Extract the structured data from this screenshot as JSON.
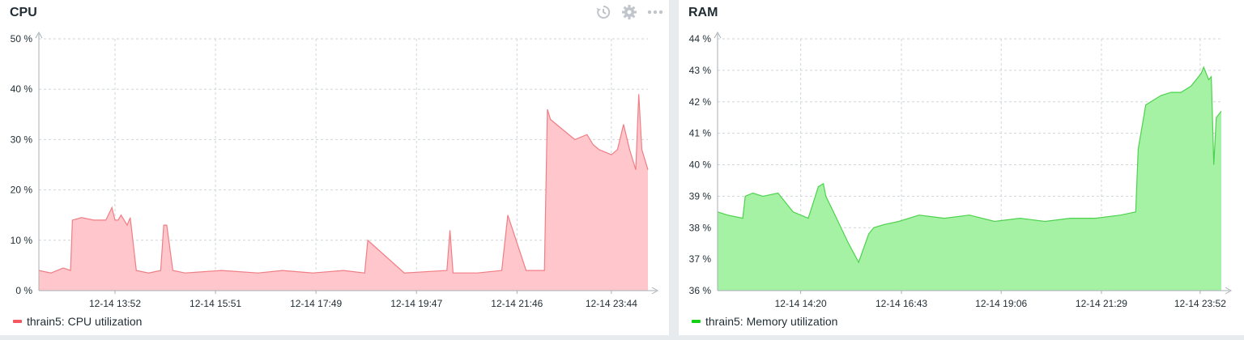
{
  "panels": [
    {
      "title": "CPU",
      "icons": [
        "history-icon",
        "gear-icon",
        "more-icon"
      ],
      "legend": "thrain5: CPU utilization",
      "colors": {
        "line": "#f07e85",
        "fill": "#ffc7cb",
        "swatch": "#f4575f"
      }
    },
    {
      "title": "RAM",
      "icons": [],
      "legend": "thrain5: Memory utilization",
      "colors": {
        "line": "#4dd24d",
        "fill": "#a5f2a5",
        "swatch": "#14d114"
      }
    }
  ],
  "chart_data": [
    {
      "type": "area",
      "title": "CPU",
      "ylim": [
        0,
        50
      ],
      "yticks": [
        "0 %",
        "10 %",
        "20 %",
        "30 %",
        "40 %",
        "50 %"
      ],
      "xticks": [
        "12-14 13:52",
        "12-14 15:51",
        "12-14 17:49",
        "12-14 19:47",
        "12-14 21:46",
        "12-14 23:44"
      ],
      "xtick_values": [
        0.125,
        0.29,
        0.455,
        0.62,
        0.785,
        0.94
      ],
      "grid": true,
      "legend_position": "bottom-left",
      "series": [
        {
          "name": "thrain5: CPU utilization",
          "x": [
            0,
            0.02,
            0.04,
            0.052,
            0.055,
            0.07,
            0.09,
            0.11,
            0.12,
            0.125,
            0.13,
            0.135,
            0.14,
            0.145,
            0.15,
            0.16,
            0.18,
            0.2,
            0.205,
            0.21,
            0.22,
            0.24,
            0.3,
            0.36,
            0.4,
            0.45,
            0.5,
            0.535,
            0.54,
            0.6,
            0.67,
            0.675,
            0.68,
            0.72,
            0.76,
            0.77,
            0.8,
            0.83,
            0.835,
            0.84,
            0.86,
            0.88,
            0.9,
            0.91,
            0.92,
            0.94,
            0.95,
            0.96,
            0.97,
            0.98,
            0.985,
            0.99,
            1.0
          ],
          "y": [
            4,
            3.5,
            4.5,
            4,
            14,
            14.5,
            14,
            14,
            16.5,
            14,
            14,
            15,
            14,
            13,
            14.5,
            4,
            3.5,
            4,
            13,
            13,
            4,
            3.5,
            4,
            3.5,
            4,
            3.5,
            4,
            3.5,
            10,
            3.5,
            4,
            12,
            3.5,
            3.5,
            4,
            15,
            4,
            4,
            36,
            34,
            32,
            30,
            31,
            29,
            28,
            27,
            28,
            33,
            28,
            24,
            39,
            28,
            24
          ]
        }
      ]
    },
    {
      "type": "area",
      "title": "RAM",
      "ylim": [
        36,
        44
      ],
      "yticks": [
        "36 %",
        "37 %",
        "38 %",
        "39 %",
        "40 %",
        "41 %",
        "42 %",
        "43 %",
        "44 %"
      ],
      "xticks": [
        "12-14 14:20",
        "12-14 16:43",
        "12-14 19:06",
        "12-14 21:29",
        "12-14 23:52"
      ],
      "xtick_values": [
        0.165,
        0.365,
        0.563,
        0.762,
        0.958
      ],
      "grid": true,
      "legend_position": "bottom-left",
      "series": [
        {
          "name": "thrain5: Memory utilization",
          "x": [
            0,
            0.02,
            0.05,
            0.055,
            0.07,
            0.09,
            0.12,
            0.15,
            0.18,
            0.2,
            0.21,
            0.215,
            0.23,
            0.26,
            0.28,
            0.3,
            0.31,
            0.33,
            0.36,
            0.4,
            0.45,
            0.5,
            0.55,
            0.6,
            0.65,
            0.7,
            0.75,
            0.8,
            0.83,
            0.835,
            0.85,
            0.88,
            0.9,
            0.92,
            0.94,
            0.96,
            0.965,
            0.975,
            0.98,
            0.985,
            0.99,
            1.0
          ],
          "y": [
            38.5,
            38.4,
            38.3,
            39.0,
            39.1,
            39.0,
            39.1,
            38.5,
            38.3,
            39.3,
            39.4,
            39.0,
            38.5,
            37.5,
            36.9,
            37.8,
            38.0,
            38.1,
            38.2,
            38.4,
            38.3,
            38.4,
            38.2,
            38.3,
            38.2,
            38.3,
            38.3,
            38.4,
            38.5,
            40.5,
            41.9,
            42.2,
            42.3,
            42.3,
            42.5,
            42.9,
            43.1,
            42.7,
            42.8,
            40.0,
            41.5,
            41.7
          ]
        }
      ]
    }
  ]
}
